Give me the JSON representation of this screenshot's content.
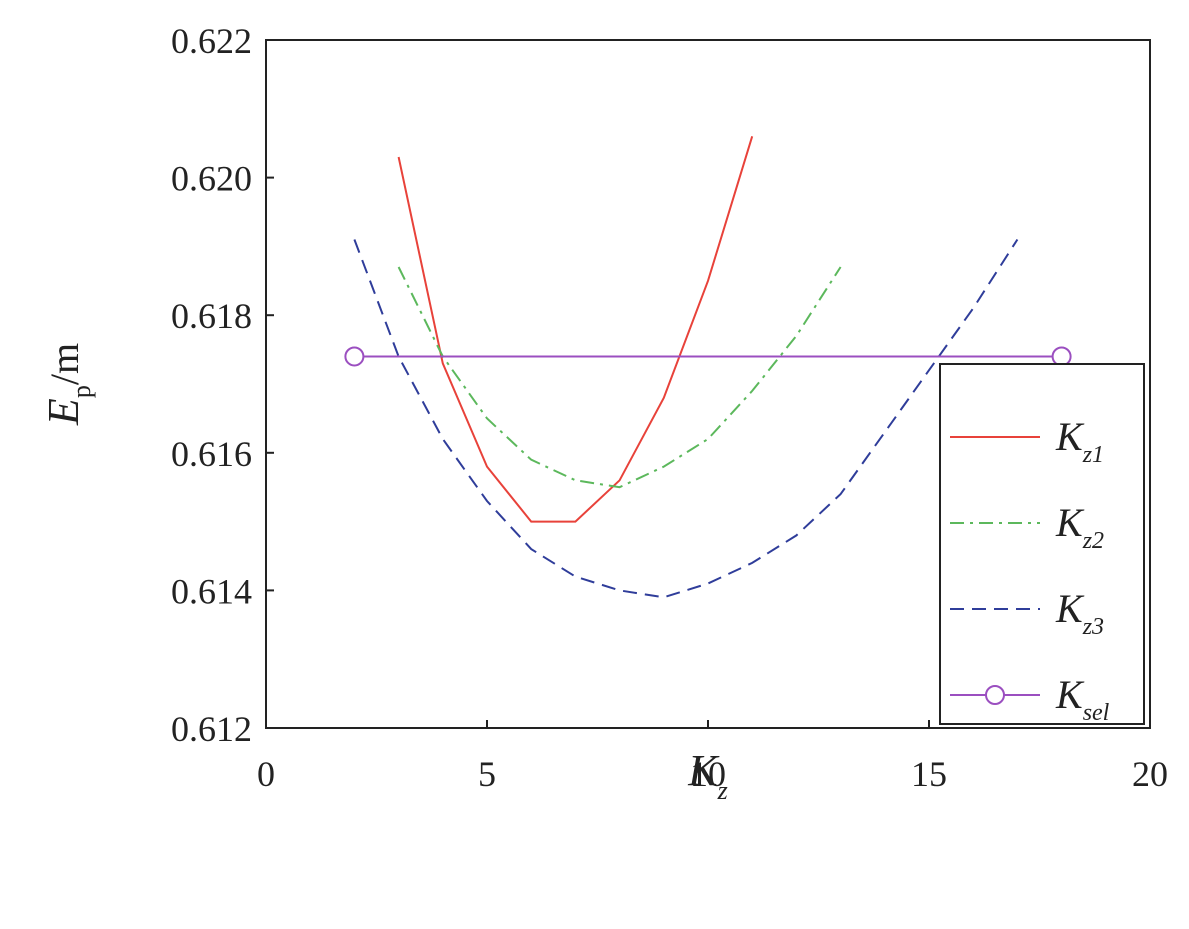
{
  "chart_data": {
    "type": "line",
    "xlabel": {
      "main": "K",
      "sub": "z"
    },
    "ylabel": {
      "main": "E",
      "sub": "p",
      "unit": "/m"
    },
    "xlim": [
      0,
      20
    ],
    "ylim": [
      0.612,
      0.622
    ],
    "xticks": [
      0,
      5,
      10,
      15,
      20
    ],
    "xtick_labels": [
      "0",
      "5",
      "10",
      "15",
      "20"
    ],
    "yticks": [
      0.612,
      0.614,
      0.616,
      0.618,
      0.62,
      0.622
    ],
    "ytick_labels": [
      "0.612",
      "0.614",
      "0.616",
      "0.618",
      "0.620",
      "0.622"
    ],
    "grid": false,
    "legend_position": "bottom-right",
    "series": [
      {
        "name": "K_z1",
        "label_main": "K",
        "label_sub": "z1",
        "color": "#e8423a",
        "style": "solid",
        "x": [
          3,
          4,
          5,
          6,
          7,
          8,
          9,
          10,
          11
        ],
        "y": [
          0.6203,
          0.6173,
          0.6158,
          0.615,
          0.615,
          0.6156,
          0.6168,
          0.6185,
          0.6206
        ]
      },
      {
        "name": "K_z2",
        "label_main": "K",
        "label_sub": "z2",
        "color": "#5cb85c",
        "style": "dashdot",
        "x": [
          3,
          4,
          5,
          6,
          7,
          8,
          9,
          10,
          11,
          12,
          13
        ],
        "y": [
          0.6187,
          0.6174,
          0.6165,
          0.6159,
          0.6156,
          0.6155,
          0.6158,
          0.6162,
          0.6169,
          0.6177,
          0.6187
        ]
      },
      {
        "name": "K_z3",
        "label_main": "K",
        "label_sub": "z3",
        "color": "#2f3d9a",
        "style": "dashed",
        "x": [
          2,
          3,
          4,
          5,
          6,
          7,
          8,
          9,
          10,
          11,
          12,
          13,
          14,
          15,
          16,
          17
        ],
        "y": [
          0.6191,
          0.6174,
          0.6162,
          0.6153,
          0.6146,
          0.6142,
          0.614,
          0.6139,
          0.6141,
          0.6144,
          0.6148,
          0.6154,
          0.6163,
          0.6172,
          0.6181,
          0.6191
        ]
      },
      {
        "name": "K_sel",
        "label_main": "K",
        "label_sub": "sel",
        "color": "#9b4fc0",
        "style": "solid-marker",
        "marker": "circle",
        "x": [
          2,
          18
        ],
        "y": [
          0.6174,
          0.6174
        ]
      }
    ]
  }
}
